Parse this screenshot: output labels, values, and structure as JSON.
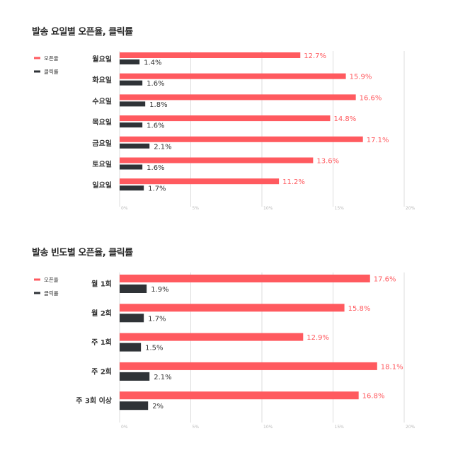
{
  "colors": {
    "open": "#ff5a5f",
    "click": "#2f3337",
    "grid": "#dddddd",
    "tick": "#bbbbbb"
  },
  "chart_data": [
    {
      "type": "bar",
      "orientation": "horizontal",
      "title": "발송 요일별 오픈율, 클릭률",
      "categories": [
        "월요일",
        "화요일",
        "수요일",
        "목요일",
        "금요일",
        "토요일",
        "일요일"
      ],
      "series": [
        {
          "name": "오픈율",
          "values": [
            12.7,
            15.9,
            16.6,
            14.8,
            17.1,
            13.6,
            11.2
          ],
          "labels": [
            "12.7%",
            "15.9%",
            "16.6%",
            "14.8%",
            "17.1%",
            "13.6%",
            "11.2%"
          ]
        },
        {
          "name": "클릭률",
          "values": [
            1.4,
            1.6,
            1.8,
            1.6,
            2.1,
            1.6,
            1.7
          ],
          "labels": [
            "1.4%",
            "1.6%",
            "1.8%",
            "1.6%",
            "2.1%",
            "1.6%",
            "1.7%"
          ]
        }
      ],
      "xlim": [
        0,
        20
      ],
      "xticks": [
        "0%",
        "5%",
        "10%",
        "15%",
        "20%"
      ],
      "grid": true,
      "legend": "top-left"
    },
    {
      "type": "bar",
      "orientation": "horizontal",
      "title": "발송 빈도별 오픈율, 클릭률",
      "categories": [
        "월 1회",
        "월 2회",
        "주 1회",
        "주 2회",
        "주 3회 이상"
      ],
      "series": [
        {
          "name": "오픈율",
          "values": [
            17.6,
            15.8,
            12.9,
            18.1,
            16.8
          ],
          "labels": [
            "17.6%",
            "15.8%",
            "12.9%",
            "18.1%",
            "16.8%"
          ]
        },
        {
          "name": "클릭률",
          "values": [
            1.9,
            1.7,
            1.5,
            2.1,
            2.0
          ],
          "labels": [
            "1.9%",
            "1.7%",
            "1.5%",
            "2.1%",
            "2%"
          ]
        }
      ],
      "xlim": [
        0,
        20
      ],
      "xticks": [
        "0%",
        "5%",
        "10%",
        "15%",
        "20%"
      ],
      "grid": true,
      "legend": "top-left"
    }
  ]
}
